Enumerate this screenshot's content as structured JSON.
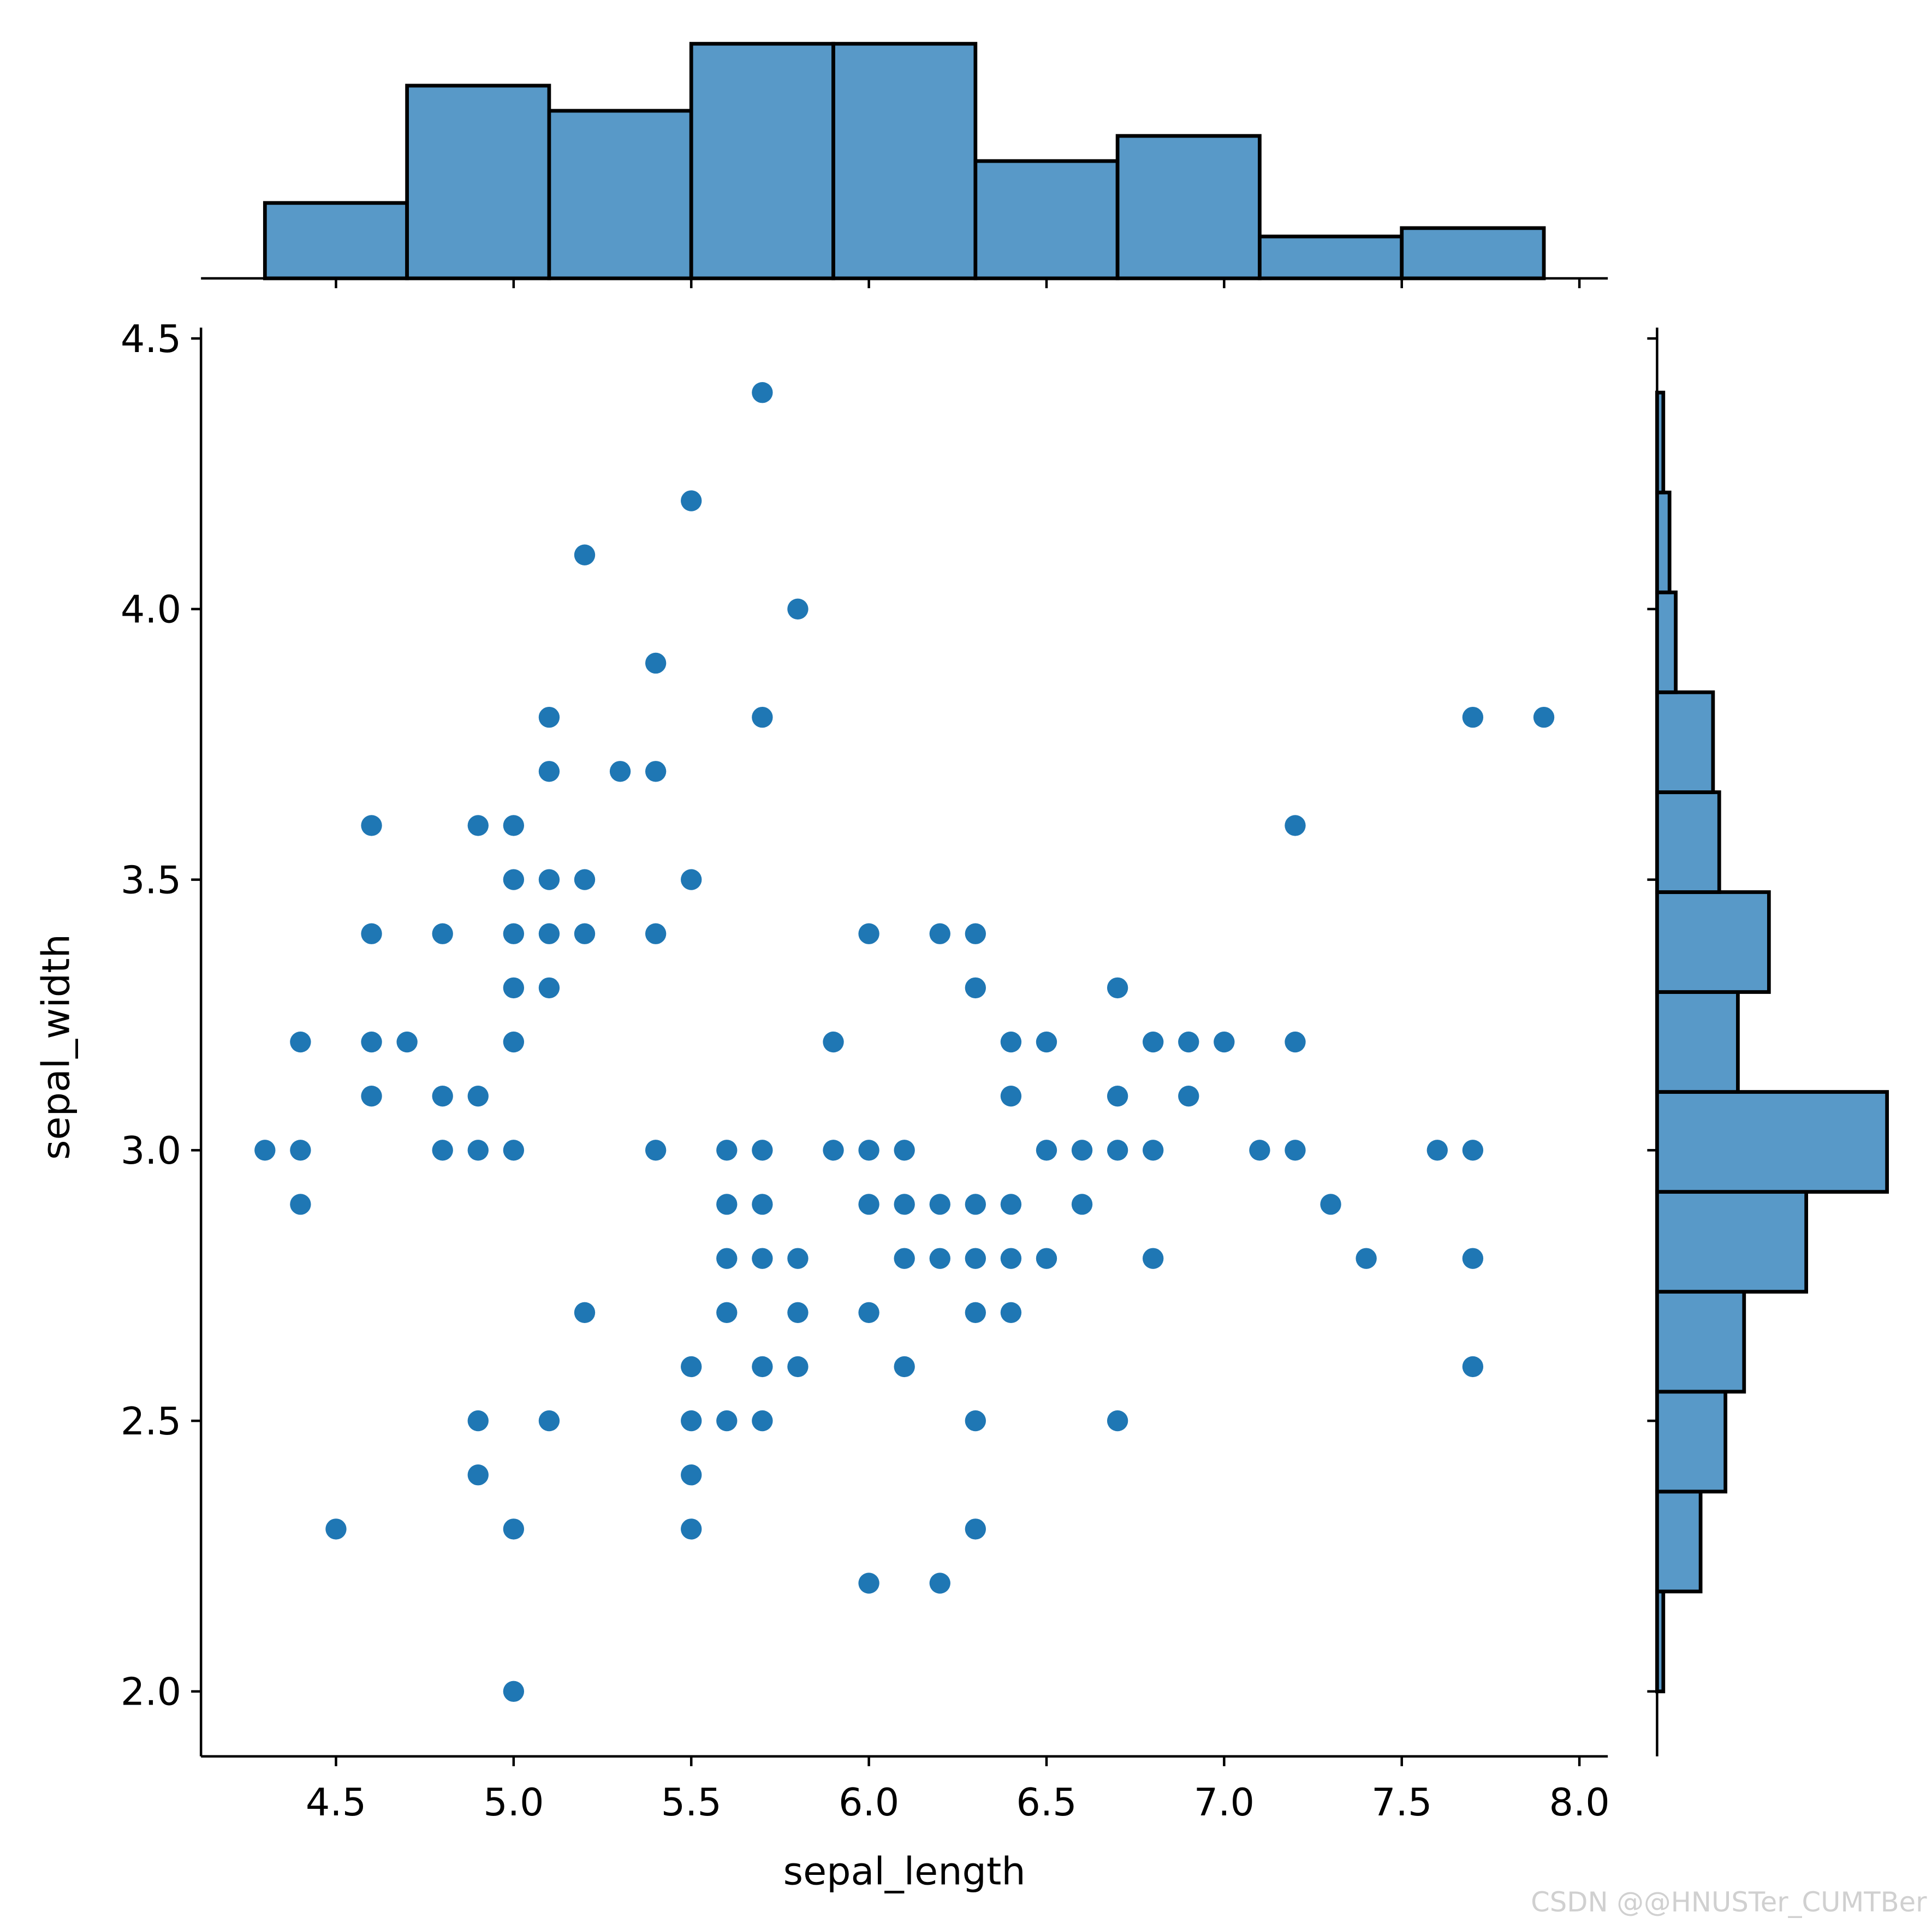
{
  "chart_data": [
    {
      "type": "scatter",
      "xlabel": "sepal_length",
      "ylabel": "sepal_width",
      "color": "#1f77b4",
      "xlim": [
        4.12,
        8.08
      ],
      "ylim": [
        1.88,
        4.52
      ],
      "xticks": [
        4.5,
        {
          "value": 5,
          "label": "5.0"
        },
        5.5,
        {
          "value": 6,
          "label": "6.0"
        },
        6.5,
        {
          "value": 7,
          "label": "7.0"
        },
        7.5,
        {
          "value": 8,
          "label": "8.0"
        }
      ],
      "yticks": [
        {
          "value": 2,
          "label": "2.0"
        },
        2.5,
        {
          "value": 3,
          "label": "3.0"
        },
        3.5,
        {
          "value": 4,
          "label": "4.0"
        },
        4.5
      ],
      "x": [
        5.7,
        5.5,
        5.2,
        5.8,
        5.4,
        5.1,
        5.7,
        7.7,
        7.9,
        5.1,
        5.3,
        5.4,
        4.6,
        4.9,
        5.0,
        7.2,
        5.0,
        5.1,
        5.2,
        5.5,
        4.6,
        4.8,
        5.0,
        5.1,
        5.2,
        5.4,
        6.0,
        6.2,
        6.3,
        5.0,
        5.1,
        6.3,
        6.7,
        4.4,
        4.6,
        4.7,
        5.0,
        5.9,
        6.4,
        6.5,
        6.8,
        6.9,
        7.0,
        7.2,
        4.6,
        4.8,
        4.9,
        6.4,
        6.7,
        6.9,
        4.3,
        4.4,
        4.8,
        4.9,
        5.0,
        5.4,
        5.6,
        5.7,
        5.9,
        6.0,
        6.1,
        6.5,
        6.6,
        6.7,
        6.8,
        7.1,
        7.2,
        7.6,
        7.7,
        4.4,
        5.6,
        5.7,
        6.0,
        6.1,
        6.2,
        6.3,
        6.4,
        6.6,
        7.3,
        5.6,
        5.7,
        5.8,
        6.1,
        6.2,
        6.3,
        6.4,
        6.5,
        6.8,
        7.4,
        7.7,
        5.2,
        5.6,
        5.8,
        6.0,
        6.3,
        6.4,
        5.5,
        5.7,
        5.8,
        6.1,
        7.7,
        4.9,
        5.1,
        5.5,
        5.6,
        5.7,
        6.3,
        6.7,
        4.9,
        5.5,
        4.5,
        5.0,
        5.5,
        6.3,
        6.0,
        6.2,
        5.0
      ],
      "values": [
        4.4,
        4.2,
        4.1,
        4.0,
        3.9,
        3.8,
        3.8,
        3.8,
        3.8,
        3.7,
        3.7,
        3.7,
        3.6,
        3.6,
        3.6,
        3.6,
        3.5,
        3.5,
        3.5,
        3.5,
        3.4,
        3.4,
        3.4,
        3.4,
        3.4,
        3.4,
        3.4,
        3.4,
        3.4,
        3.3,
        3.3,
        3.3,
        3.3,
        3.2,
        3.2,
        3.2,
        3.2,
        3.2,
        3.2,
        3.2,
        3.2,
        3.2,
        3.2,
        3.2,
        3.1,
        3.1,
        3.1,
        3.1,
        3.1,
        3.1,
        3.0,
        3.0,
        3.0,
        3.0,
        3.0,
        3.0,
        3.0,
        3.0,
        3.0,
        3.0,
        3.0,
        3.0,
        3.0,
        3.0,
        3.0,
        3.0,
        3.0,
        3.0,
        3.0,
        2.9,
        2.9,
        2.9,
        2.9,
        2.9,
        2.9,
        2.9,
        2.9,
        2.9,
        2.9,
        2.8,
        2.8,
        2.8,
        2.8,
        2.8,
        2.8,
        2.8,
        2.8,
        2.8,
        2.8,
        2.8,
        2.7,
        2.7,
        2.7,
        2.7,
        2.7,
        2.7,
        2.6,
        2.6,
        2.6,
        2.6,
        2.6,
        2.5,
        2.5,
        2.5,
        2.5,
        2.5,
        2.5,
        2.5,
        2.4,
        2.4,
        2.3,
        2.3,
        2.3,
        2.3,
        2.2,
        2.2,
        2.0
      ]
    },
    {
      "type": "histogram",
      "orientation": "vertical",
      "color": "#5899c8",
      "edgecolor": "#000000",
      "xlim": [
        4.12,
        8.08
      ],
      "ylim": [
        0,
        29.4
      ],
      "bins": [
        4.3,
        4.7,
        5.1,
        5.5,
        5.9,
        6.3,
        6.7,
        7.1,
        7.5,
        7.9
      ],
      "values": [
        9,
        23,
        20,
        28,
        28,
        14,
        17,
        5,
        6
      ]
    },
    {
      "type": "histogram",
      "orientation": "horizontal",
      "color": "#5899c8",
      "edgecolor": "#000000",
      "xlim": [
        0,
        38.85
      ],
      "ylim": [
        1.88,
        4.52
      ],
      "bins": [
        2.0,
        2.1846,
        2.3692,
        2.5538,
        2.7385,
        2.9231,
        3.1077,
        3.2923,
        3.4769,
        3.6615,
        3.8462,
        4.0308,
        4.2154,
        4.4
      ],
      "values": [
        1,
        7,
        11,
        14,
        24,
        37,
        13,
        18,
        10,
        9,
        3,
        2,
        1
      ]
    }
  ],
  "watermark": "CSDN @@HNUSTer_CUMTBer"
}
